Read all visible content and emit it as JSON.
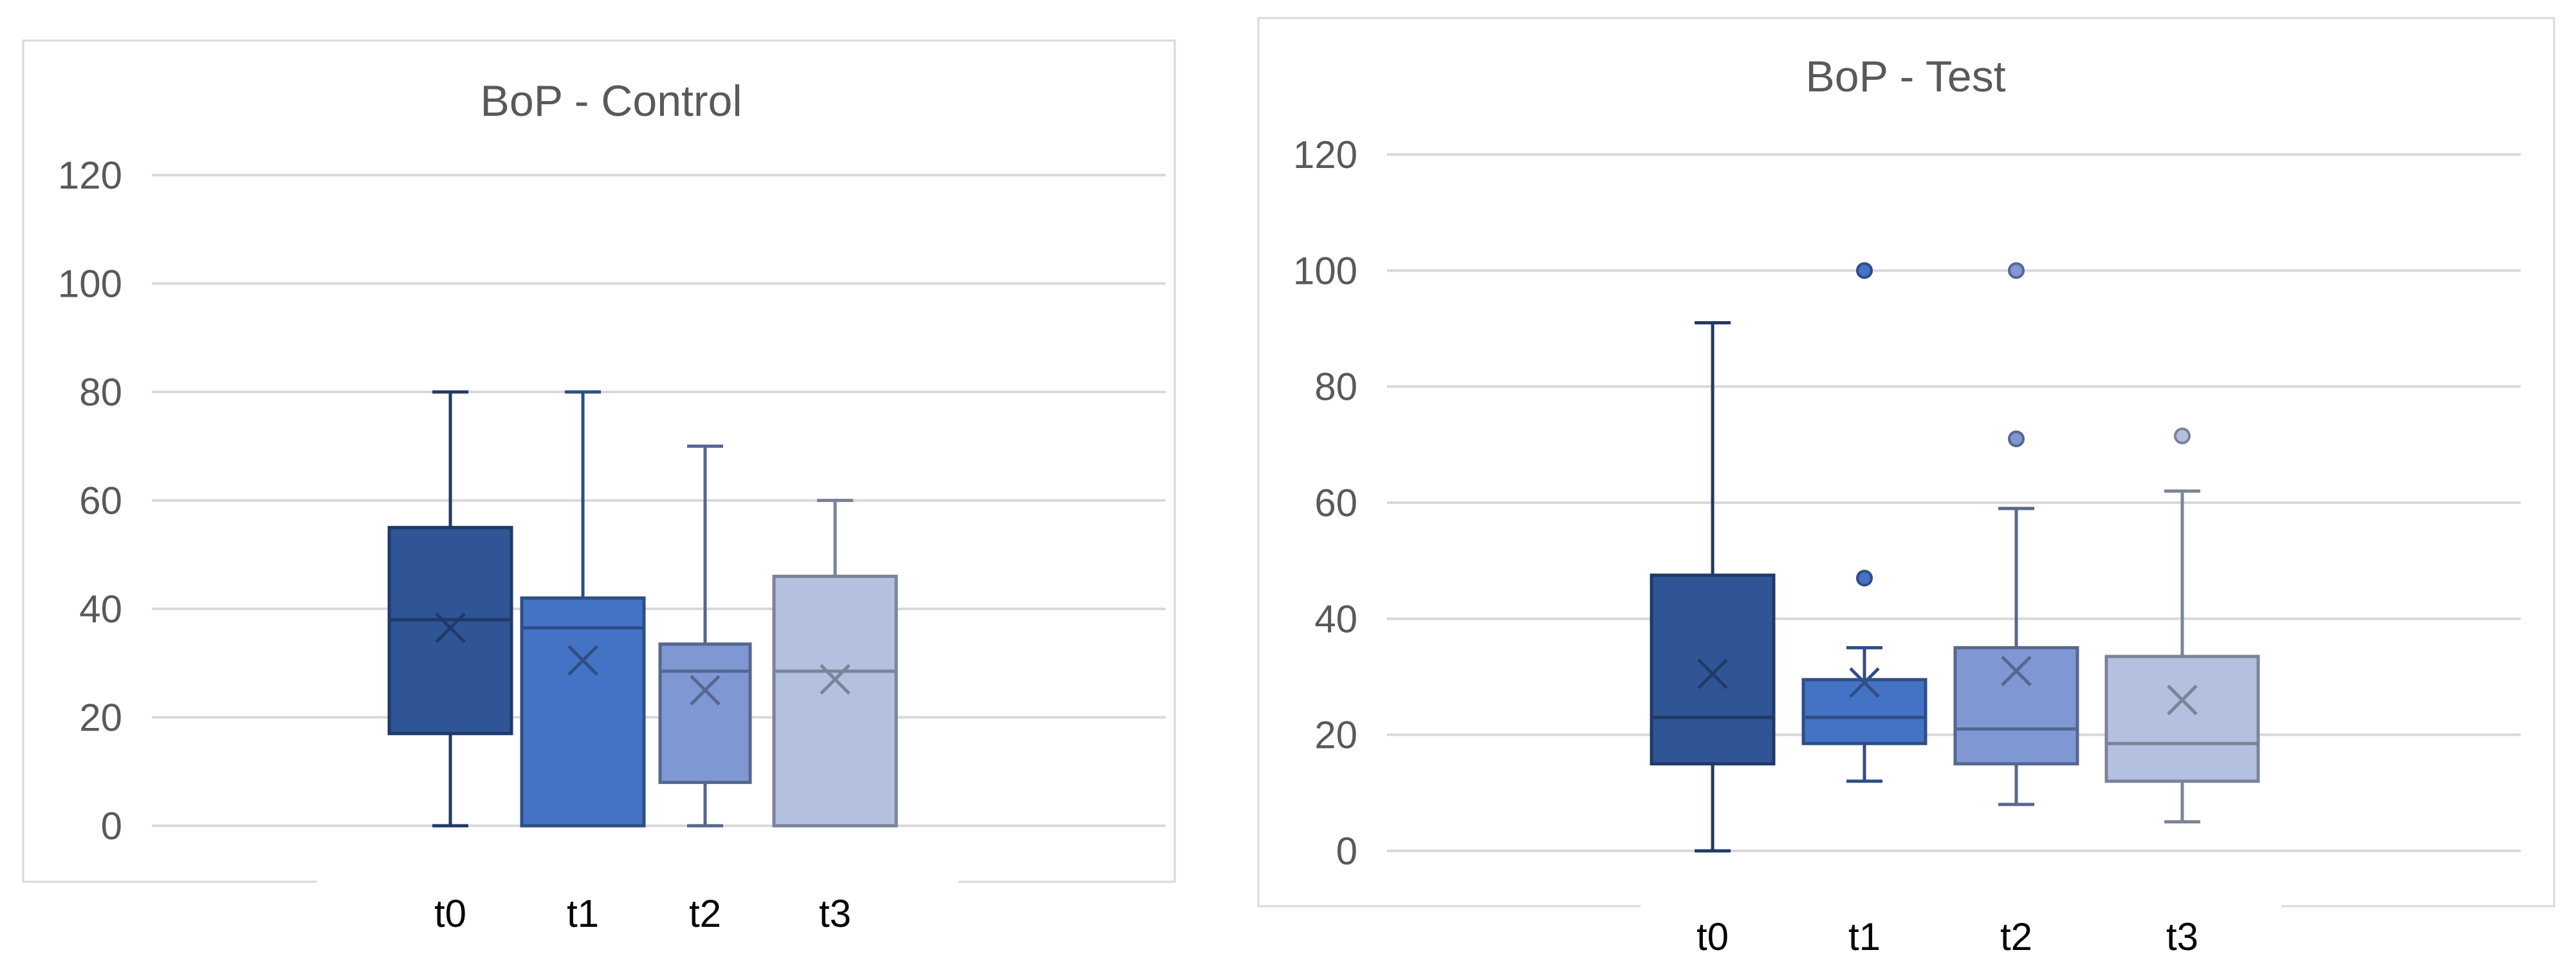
{
  "chart_data": [
    {
      "type": "box",
      "title": "BoP - Control",
      "xlabel": "",
      "ylabel": "",
      "categories": [
        "t0",
        "t1",
        "t2",
        "t3"
      ],
      "ylim": [
        0,
        120
      ],
      "yticks": [
        0,
        20,
        40,
        60,
        80,
        100,
        120
      ],
      "grid": true,
      "legend": "none",
      "boxes": [
        {
          "category": "t0",
          "min": 0,
          "q1": 17,
          "median": 38,
          "q3": 55,
          "max": 80,
          "mean": 36.5,
          "outliers": [],
          "color": "#2f5597"
        },
        {
          "category": "t1",
          "min": 0,
          "q1": 0,
          "median": 36.5,
          "q3": 42,
          "max": 80,
          "mean": 30.5,
          "outliers": [],
          "color": "#4472c4"
        },
        {
          "category": "t2",
          "min": 0,
          "q1": 8,
          "median": 28.5,
          "q3": 33.5,
          "max": 70,
          "mean": 25,
          "outliers": [],
          "color": "#7f98d4"
        },
        {
          "category": "t3",
          "min": 0,
          "q1": 0,
          "median": 28.5,
          "q3": 46,
          "max": 60,
          "mean": 27,
          "outliers": [],
          "color": "#b4c0e0"
        }
      ]
    },
    {
      "type": "box",
      "title": "BoP - Test",
      "xlabel": "",
      "ylabel": "",
      "categories": [
        "t0",
        "t1",
        "t2",
        "t3"
      ],
      "ylim": [
        0,
        120
      ],
      "yticks": [
        0,
        20,
        40,
        60,
        80,
        100,
        120
      ],
      "grid": true,
      "legend": "none",
      "boxes": [
        {
          "category": "t0",
          "min": 0,
          "q1": 15,
          "median": 23,
          "q3": 47.5,
          "max": 91,
          "mean": 30.5,
          "outliers": [],
          "color": "#2f5597"
        },
        {
          "category": "t1",
          "min": 12,
          "q1": 18.5,
          "median": 23,
          "q3": 29.5,
          "max": 35,
          "mean": 29,
          "outliers": [
            47,
            100
          ],
          "color": "#4472c4"
        },
        {
          "category": "t2",
          "min": 8,
          "q1": 15,
          "median": 21,
          "q3": 35,
          "max": 59,
          "mean": 31,
          "outliers": [
            71,
            100
          ],
          "color": "#7f98d4"
        },
        {
          "category": "t3",
          "min": 5,
          "q1": 12,
          "median": 18.5,
          "q3": 33.5,
          "max": 62,
          "mean": 26,
          "outliers": [
            71.5
          ],
          "color": "#b4c0e0"
        }
      ]
    }
  ]
}
